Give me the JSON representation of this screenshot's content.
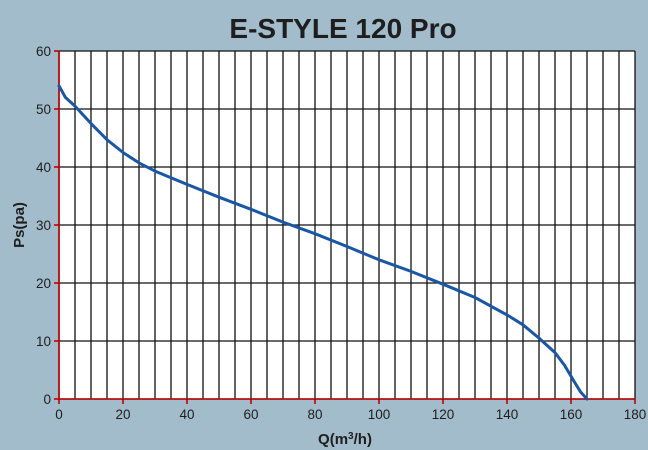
{
  "chart_data": {
    "type": "line",
    "title": "E-STYLE 120 Pro",
    "xlabel": "Q(m³/h)",
    "xlabel_main": "Q(m",
    "xlabel_sup": "3",
    "xlabel_tail": "/h)",
    "ylabel": "Ps(pa)",
    "xlim": [
      0,
      180
    ],
    "ylim": [
      0,
      60
    ],
    "x_major_ticks": [
      0,
      20,
      40,
      60,
      80,
      100,
      120,
      140,
      160,
      180
    ],
    "y_major_ticks": [
      0,
      10,
      20,
      30,
      40,
      50,
      60
    ],
    "x_grid_step": 5,
    "y_grid_step": 10,
    "grid": true,
    "colors": {
      "background": "#a2bccb",
      "plot_area": "#ffffff",
      "grid": "#111111",
      "series": "#1a56a6",
      "axis": "#c00000",
      "text": "#1e1e1e"
    },
    "series": [
      {
        "x": [
          0,
          2,
          5,
          10,
          15,
          20,
          25,
          30,
          40,
          50,
          60,
          70,
          80,
          90,
          100,
          110,
          120,
          130,
          140,
          145,
          150,
          155,
          158,
          161,
          163,
          165
        ],
        "y": [
          54,
          52,
          50.5,
          47.5,
          44.7,
          42.5,
          40.7,
          39.3,
          37,
          34.8,
          32.7,
          30.5,
          28.5,
          26.3,
          24,
          22,
          19.8,
          17.5,
          14.5,
          12.8,
          10.5,
          8,
          5.8,
          3,
          1.2,
          0
        ]
      }
    ]
  }
}
